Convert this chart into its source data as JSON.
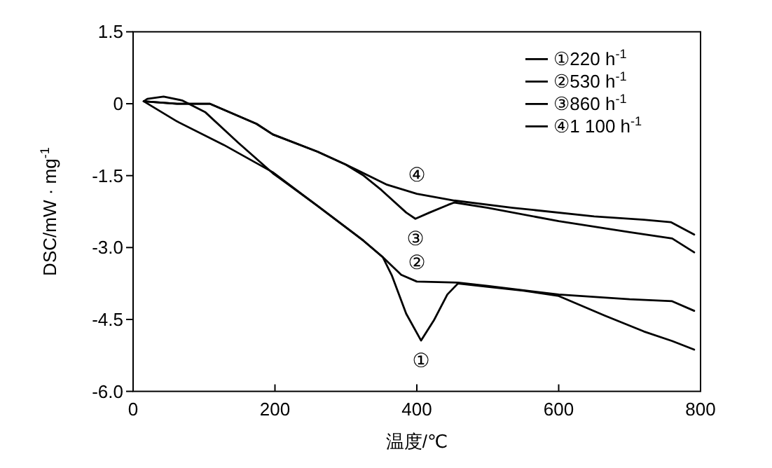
{
  "chart_data": {
    "type": "line",
    "xlabel": "温度/℃",
    "ylabel": "DSC/mW · mg$^{-1}$",
    "xlim": [
      0,
      800
    ],
    "xticks": [
      0,
      200,
      400,
      600,
      800
    ],
    "ylim": [
      -6,
      1.5
    ],
    "yticks": [
      1.5,
      0,
      -1.5,
      {
        "value": -3,
        "label": "-3.0"
      },
      -4.5,
      {
        "value": -6,
        "label": "-6.0"
      }
    ],
    "legend": "top right",
    "grid": false,
    "marker": "none",
    "line_style": "solid",
    "series": [
      {
        "name": "①220 h$^{-1}$",
        "color": "#000000",
        "x": [
          15,
          20,
          43,
          69,
          102,
          148,
          197,
          260,
          325,
          352,
          365,
          385,
          406,
          424,
          443,
          458,
          500,
          550,
          600,
          665,
          720,
          760,
          791
        ],
        "values": [
          0.05,
          0.1,
          0.15,
          0.07,
          -0.18,
          -0.81,
          -1.45,
          -2.13,
          -2.86,
          -3.2,
          -3.59,
          -4.38,
          -4.94,
          -4.52,
          -3.98,
          -3.75,
          -3.82,
          -3.9,
          -4.01,
          -4.42,
          -4.75,
          -4.95,
          -5.13
        ]
      },
      {
        "name": "②530 h$^{-1}$",
        "color": "#000000",
        "x": [
          15,
          62,
          128,
          197,
          260,
          325,
          352,
          378,
          400,
          430,
          458,
          500,
          600,
          700,
          760,
          791
        ],
        "values": [
          0.05,
          -0.37,
          -0.86,
          -1.43,
          -2.13,
          -2.86,
          -3.2,
          -3.57,
          -3.71,
          -3.72,
          -3.73,
          -3.8,
          -3.98,
          -4.08,
          -4.12,
          -4.32
        ]
      },
      {
        "name": "③860 h$^{-1}$",
        "color": "#000000",
        "x": [
          15,
          62,
          108,
          174,
          197,
          260,
          300,
          325,
          350,
          385,
          398,
          418,
          444,
          453,
          500,
          600,
          700,
          760,
          791
        ],
        "values": [
          0.05,
          0,
          0,
          -0.42,
          -0.64,
          -1.0,
          -1.27,
          -1.5,
          -1.8,
          -2.27,
          -2.4,
          -2.27,
          -2.11,
          -2.06,
          -2.17,
          -2.45,
          -2.68,
          -2.81,
          -3.1
        ]
      },
      {
        "name": "④1 100 h$^{-1}$",
        "color": "#000000",
        "x": [
          15,
          62,
          108,
          174,
          197,
          260,
          300,
          358,
          400,
          453,
          535,
          650,
          720,
          758,
          791
        ],
        "values": [
          0.05,
          0,
          0,
          -0.42,
          -0.64,
          -1.0,
          -1.27,
          -1.69,
          -1.88,
          -2.02,
          -2.17,
          -2.35,
          -2.42,
          -2.47,
          -2.73
        ]
      }
    ],
    "annotations": [
      "①",
      "②",
      "③",
      "④"
    ]
  }
}
